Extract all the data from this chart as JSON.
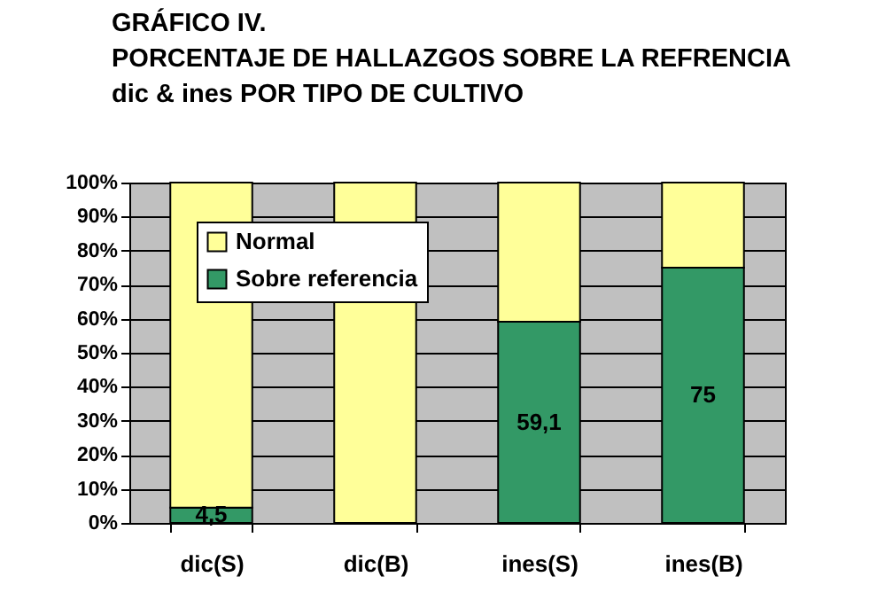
{
  "chart_data": {
    "type": "bar",
    "title": "GRÁFICO IV.\nPORCENTAJE DE HALLAZGOS SOBRE LA REFRENCIA\ndic & ines POR TIPO DE CULTIVO",
    "categories": [
      "dic(S)",
      "dic(B)",
      "ines(S)",
      "ines(B)"
    ],
    "stacked": true,
    "series": [
      {
        "name": "Sobre referencia",
        "color": "#339966",
        "values": [
          4.5,
          0,
          59.1,
          75
        ],
        "value_labels": [
          "4,5",
          null,
          "59,1",
          "75"
        ]
      },
      {
        "name": "Normal",
        "color": "#ffff99",
        "values": [
          95.5,
          100,
          40.9,
          25
        ]
      }
    ],
    "ylim": [
      0,
      100
    ],
    "yticks": [
      {
        "value": 0,
        "label": "0%"
      },
      {
        "value": 10,
        "label": "10%"
      },
      {
        "value": 20,
        "label": "20%"
      },
      {
        "value": 30,
        "label": "30%"
      },
      {
        "value": 40,
        "label": "40%"
      },
      {
        "value": 50,
        "label": "50%"
      },
      {
        "value": 60,
        "label": "60%"
      },
      {
        "value": 70,
        "label": "70%"
      },
      {
        "value": 80,
        "label": "80%"
      },
      {
        "value": 90,
        "label": "90%"
      },
      {
        "value": 100,
        "label": "100%"
      }
    ],
    "grid": "y",
    "legend": "top left"
  }
}
